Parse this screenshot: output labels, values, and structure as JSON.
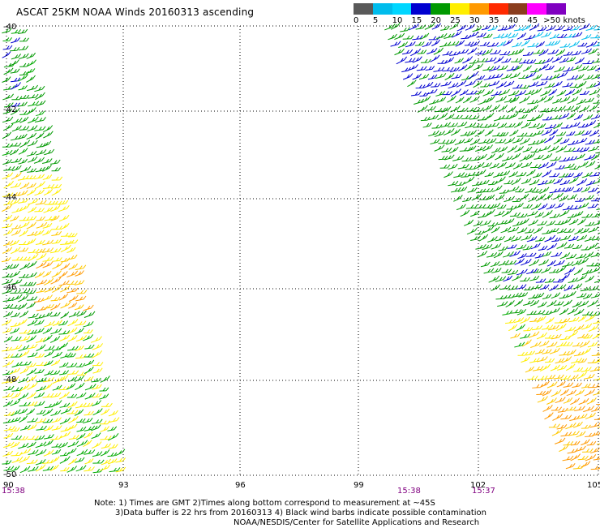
{
  "title": "ASCAT 25KM NOAA Winds 20160313 ascending",
  "legend": {
    "unit_label": ">50 knots",
    "bins": [
      {
        "label": "0",
        "color": "#595959"
      },
      {
        "label": "5",
        "color": "#00bcec"
      },
      {
        "label": "10",
        "color": "#00d6ff"
      },
      {
        "label": "15",
        "color": "#0000d0"
      },
      {
        "label": "20",
        "color": "#009900"
      },
      {
        "label": "25",
        "color": "#ffee00"
      },
      {
        "label": "30",
        "color": "#ff9900"
      },
      {
        "label": "35",
        "color": "#ff2a00"
      },
      {
        "label": "40",
        "color": "#8a3d1d"
      },
      {
        "label": "45",
        "color": "#ff00ff"
      },
      {
        "label": "",
        "color": "#8000c0"
      }
    ]
  },
  "axes": {
    "lat_labels": [
      "-40",
      "-42",
      "-44",
      "-46",
      "-48",
      "-50"
    ],
    "lon_labels": [
      "90",
      "93",
      "96",
      "99",
      "102",
      "105"
    ],
    "lat_range": [
      -50,
      -40
    ],
    "lon_range": [
      90,
      105
    ]
  },
  "times": [
    {
      "label": "15:38",
      "lon": 90
    },
    {
      "label": "15:38",
      "lon": 100
    },
    {
      "label": "15:37",
      "lon": 102
    }
  ],
  "notes": [
    "Note: 1) Times are GMT 2)Times along bottom correspond to measurement at ~45S",
    "3)Data buffer is 22 hrs from 20160313 4) Black wind barbs indicate possible contamination",
    "NOAA/NESDIS/Center for Satellite Applications and Research"
  ],
  "swaths": [
    {
      "name": "west-swath",
      "description_colors": [
        "#009900",
        "#ffee00",
        "#ff9900",
        "#0000d0"
      ]
    },
    {
      "name": "east-swath",
      "description_colors": [
        "#0000d0",
        "#009900",
        "#ffee00",
        "#ff9900",
        "#00bcec"
      ]
    }
  ]
}
